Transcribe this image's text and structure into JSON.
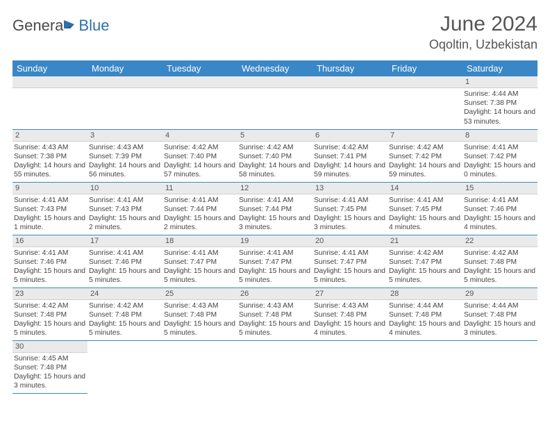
{
  "brand": {
    "part1": "Genera",
    "part2": "Blue"
  },
  "title": {
    "month": "June 2024",
    "location": "Oqoltin, Uzbekistan"
  },
  "colors": {
    "header_bg": "#3a87c7",
    "header_text": "#ffffff",
    "row_divider": "#3a87c7",
    "daynum_bg": "#eaeaea",
    "page_bg": "#ffffff",
    "text": "#444444"
  },
  "weekdays": [
    "Sunday",
    "Monday",
    "Tuesday",
    "Wednesday",
    "Thursday",
    "Friday",
    "Saturday"
  ],
  "cells": [
    [
      null,
      null,
      null,
      null,
      null,
      null,
      {
        "n": "1",
        "sr": "Sunrise: 4:44 AM",
        "ss": "Sunset: 7:38 PM",
        "dl": "Daylight: 14 hours and 53 minutes."
      }
    ],
    [
      {
        "n": "2",
        "sr": "Sunrise: 4:43 AM",
        "ss": "Sunset: 7:38 PM",
        "dl": "Daylight: 14 hours and 55 minutes."
      },
      {
        "n": "3",
        "sr": "Sunrise: 4:43 AM",
        "ss": "Sunset: 7:39 PM",
        "dl": "Daylight: 14 hours and 56 minutes."
      },
      {
        "n": "4",
        "sr": "Sunrise: 4:42 AM",
        "ss": "Sunset: 7:40 PM",
        "dl": "Daylight: 14 hours and 57 minutes."
      },
      {
        "n": "5",
        "sr": "Sunrise: 4:42 AM",
        "ss": "Sunset: 7:40 PM",
        "dl": "Daylight: 14 hours and 58 minutes."
      },
      {
        "n": "6",
        "sr": "Sunrise: 4:42 AM",
        "ss": "Sunset: 7:41 PM",
        "dl": "Daylight: 14 hours and 59 minutes."
      },
      {
        "n": "7",
        "sr": "Sunrise: 4:42 AM",
        "ss": "Sunset: 7:42 PM",
        "dl": "Daylight: 14 hours and 59 minutes."
      },
      {
        "n": "8",
        "sr": "Sunrise: 4:41 AM",
        "ss": "Sunset: 7:42 PM",
        "dl": "Daylight: 15 hours and 0 minutes."
      }
    ],
    [
      {
        "n": "9",
        "sr": "Sunrise: 4:41 AM",
        "ss": "Sunset: 7:43 PM",
        "dl": "Daylight: 15 hours and 1 minute."
      },
      {
        "n": "10",
        "sr": "Sunrise: 4:41 AM",
        "ss": "Sunset: 7:43 PM",
        "dl": "Daylight: 15 hours and 2 minutes."
      },
      {
        "n": "11",
        "sr": "Sunrise: 4:41 AM",
        "ss": "Sunset: 7:44 PM",
        "dl": "Daylight: 15 hours and 2 minutes."
      },
      {
        "n": "12",
        "sr": "Sunrise: 4:41 AM",
        "ss": "Sunset: 7:44 PM",
        "dl": "Daylight: 15 hours and 3 minutes."
      },
      {
        "n": "13",
        "sr": "Sunrise: 4:41 AM",
        "ss": "Sunset: 7:45 PM",
        "dl": "Daylight: 15 hours and 3 minutes."
      },
      {
        "n": "14",
        "sr": "Sunrise: 4:41 AM",
        "ss": "Sunset: 7:45 PM",
        "dl": "Daylight: 15 hours and 4 minutes."
      },
      {
        "n": "15",
        "sr": "Sunrise: 4:41 AM",
        "ss": "Sunset: 7:46 PM",
        "dl": "Daylight: 15 hours and 4 minutes."
      }
    ],
    [
      {
        "n": "16",
        "sr": "Sunrise: 4:41 AM",
        "ss": "Sunset: 7:46 PM",
        "dl": "Daylight: 15 hours and 5 minutes."
      },
      {
        "n": "17",
        "sr": "Sunrise: 4:41 AM",
        "ss": "Sunset: 7:46 PM",
        "dl": "Daylight: 15 hours and 5 minutes."
      },
      {
        "n": "18",
        "sr": "Sunrise: 4:41 AM",
        "ss": "Sunset: 7:47 PM",
        "dl": "Daylight: 15 hours and 5 minutes."
      },
      {
        "n": "19",
        "sr": "Sunrise: 4:41 AM",
        "ss": "Sunset: 7:47 PM",
        "dl": "Daylight: 15 hours and 5 minutes."
      },
      {
        "n": "20",
        "sr": "Sunrise: 4:41 AM",
        "ss": "Sunset: 7:47 PM",
        "dl": "Daylight: 15 hours and 5 minutes."
      },
      {
        "n": "21",
        "sr": "Sunrise: 4:42 AM",
        "ss": "Sunset: 7:47 PM",
        "dl": "Daylight: 15 hours and 5 minutes."
      },
      {
        "n": "22",
        "sr": "Sunrise: 4:42 AM",
        "ss": "Sunset: 7:48 PM",
        "dl": "Daylight: 15 hours and 5 minutes."
      }
    ],
    [
      {
        "n": "23",
        "sr": "Sunrise: 4:42 AM",
        "ss": "Sunset: 7:48 PM",
        "dl": "Daylight: 15 hours and 5 minutes."
      },
      {
        "n": "24",
        "sr": "Sunrise: 4:42 AM",
        "ss": "Sunset: 7:48 PM",
        "dl": "Daylight: 15 hours and 5 minutes."
      },
      {
        "n": "25",
        "sr": "Sunrise: 4:43 AM",
        "ss": "Sunset: 7:48 PM",
        "dl": "Daylight: 15 hours and 5 minutes."
      },
      {
        "n": "26",
        "sr": "Sunrise: 4:43 AM",
        "ss": "Sunset: 7:48 PM",
        "dl": "Daylight: 15 hours and 5 minutes."
      },
      {
        "n": "27",
        "sr": "Sunrise: 4:43 AM",
        "ss": "Sunset: 7:48 PM",
        "dl": "Daylight: 15 hours and 4 minutes."
      },
      {
        "n": "28",
        "sr": "Sunrise: 4:44 AM",
        "ss": "Sunset: 7:48 PM",
        "dl": "Daylight: 15 hours and 4 minutes."
      },
      {
        "n": "29",
        "sr": "Sunrise: 4:44 AM",
        "ss": "Sunset: 7:48 PM",
        "dl": "Daylight: 15 hours and 3 minutes."
      }
    ],
    [
      {
        "n": "30",
        "sr": "Sunrise: 4:45 AM",
        "ss": "Sunset: 7:48 PM",
        "dl": "Daylight: 15 hours and 3 minutes."
      },
      null,
      null,
      null,
      null,
      null,
      null
    ]
  ]
}
